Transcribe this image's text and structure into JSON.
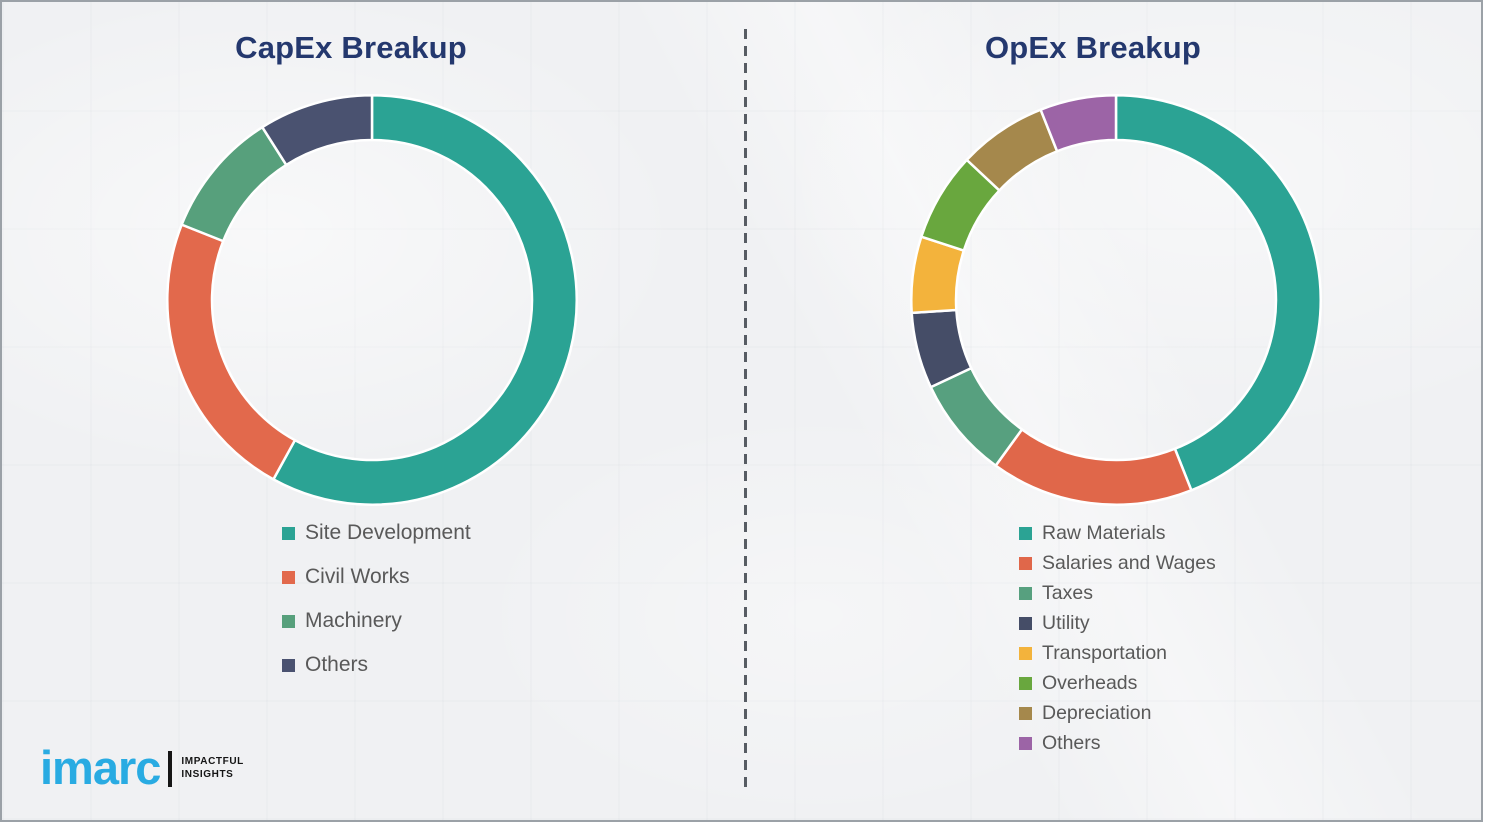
{
  "page": {
    "background_color": "#f0f1f3",
    "frame_border_color": "#9ba1a7",
    "title_color": "#24386E",
    "legend_text_color": "#595959",
    "divider_style": "vertical-dashed",
    "divider_color": "#575c63"
  },
  "chart_data": [
    {
      "id": "capex",
      "type": "pie",
      "variant": "donut",
      "title": "CapEx Breakup",
      "labels": [
        "Site Development",
        "Civil Works",
        "Machinery",
        "Others"
      ],
      "values": [
        58,
        23,
        10,
        9
      ],
      "values_unit": "percent (estimated from arc angles; no data labels shown)",
      "colors": [
        "#2BA394",
        "#E2694C",
        "#57A07C",
        "#4A5270"
      ],
      "start_angle_deg": 0,
      "direction": "clockwise",
      "legend_position": "below-left",
      "data_labels_shown": false
    },
    {
      "id": "opex",
      "type": "pie",
      "variant": "donut",
      "title": "OpEx Breakup",
      "labels": [
        "Raw Materials",
        "Salaries and Wages",
        "Taxes",
        "Utility",
        "Transportation",
        "Overheads",
        "Depreciation",
        "Others"
      ],
      "values": [
        44,
        16,
        8,
        6,
        6,
        7,
        7,
        6
      ],
      "values_unit": "percent (estimated from arc angles; no data labels shown)",
      "colors": [
        "#2BA394",
        "#E0674A",
        "#57A07F",
        "#454D67",
        "#F3B33C",
        "#69A73E",
        "#A5884C",
        "#9C64A6"
      ],
      "start_angle_deg": 0,
      "direction": "clockwise",
      "legend_position": "below-left",
      "data_labels_shown": false
    }
  ],
  "logo": {
    "brand": "imarc",
    "tagline_line1": "IMPACTFUL",
    "tagline_line2": "INSIGHTS",
    "brand_color": "#29ABE2",
    "bar_color": "#151515"
  }
}
